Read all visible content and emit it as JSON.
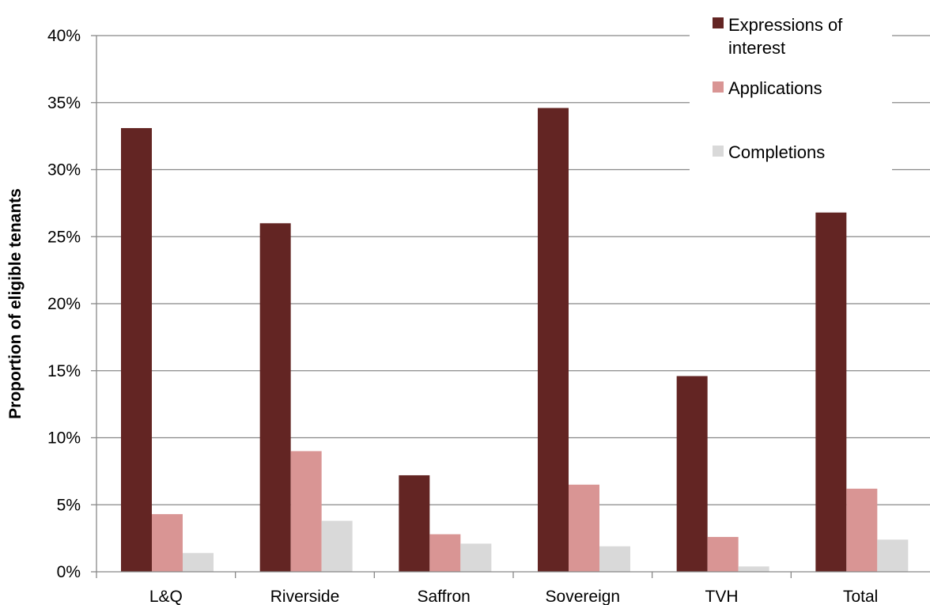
{
  "chart_data": {
    "type": "bar",
    "categories": [
      "L&Q",
      "Riverside",
      "Saffron",
      "Sovereign",
      "TVH",
      "Total"
    ],
    "series": [
      {
        "name": "Expressions of interest",
        "color": "#632523",
        "values": [
          33.1,
          26.0,
          7.2,
          34.6,
          14.6,
          26.8
        ]
      },
      {
        "name": "Applications",
        "color": "#d99594",
        "values": [
          4.3,
          9.0,
          2.8,
          6.5,
          2.6,
          6.2
        ]
      },
      {
        "name": "Completions",
        "color": "#d9d9d9",
        "values": [
          1.4,
          3.8,
          2.1,
          1.9,
          0.4,
          2.4
        ]
      }
    ],
    "legend_lines": [
      [
        "Expressions of",
        "interest"
      ],
      [
        "Applications"
      ],
      [
        "Completions"
      ]
    ],
    "ylabel": "Proportion of eligible tenants",
    "ylim": [
      0,
      40
    ],
    "yticks": [
      "0%",
      "5%",
      "10%",
      "15%",
      "20%",
      "25%",
      "30%",
      "35%",
      "40%"
    ],
    "grid": true,
    "legend_position": "top-right"
  }
}
